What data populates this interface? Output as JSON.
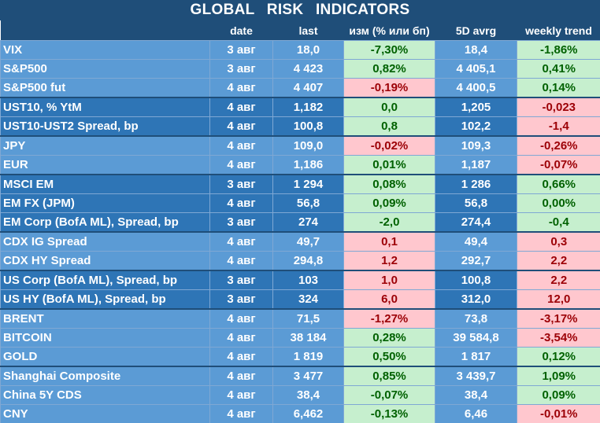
{
  "title": "GLOBAL RISK INDICATORS",
  "headers": [
    "",
    "date",
    "last",
    "изм (% или бп)",
    "5D avrg",
    "weekly trend"
  ],
  "rows": [
    {
      "name": "VIX",
      "date": "3 авг",
      "last": "18,0",
      "chg": "-7,30%",
      "chg_c": "pos",
      "avg": "18,4",
      "trend": "-1,86%",
      "trend_c": "pos",
      "grp": "A",
      "start": true
    },
    {
      "name": "S&P500",
      "date": "3 авг",
      "last": "4 423",
      "chg": "0,82%",
      "chg_c": "pos",
      "avg": "4 405,1",
      "trend": "0,41%",
      "trend_c": "pos",
      "grp": "A",
      "start": false
    },
    {
      "name": "S&P500 fut",
      "date": "4 авг",
      "last": "4 407",
      "chg": "-0,19%",
      "chg_c": "neg",
      "avg": "4 400,5",
      "trend": "0,14%",
      "trend_c": "pos",
      "grp": "A",
      "start": false
    },
    {
      "name": "UST10, % YtM",
      "date": "4 авг",
      "last": "1,182",
      "chg": "0,0",
      "chg_c": "pos",
      "avg": "1,205",
      "trend": "-0,023",
      "trend_c": "neg",
      "grp": "B",
      "start": true
    },
    {
      "name": "UST10-UST2 Spread, bp",
      "date": "4 авг",
      "last": "100,8",
      "chg": "0,8",
      "chg_c": "pos",
      "avg": "102,2",
      "trend": "-1,4",
      "trend_c": "neg",
      "grp": "B",
      "start": false
    },
    {
      "name": "JPY",
      "date": "4 авг",
      "last": "109,0",
      "chg": "-0,02%",
      "chg_c": "neg",
      "avg": "109,3",
      "trend": "-0,26%",
      "trend_c": "neg",
      "grp": "A",
      "start": true
    },
    {
      "name": "EUR",
      "date": "4 авг",
      "last": "1,186",
      "chg": "0,01%",
      "chg_c": "pos",
      "avg": "1,187",
      "trend": "-0,07%",
      "trend_c": "neg",
      "grp": "A",
      "start": false
    },
    {
      "name": "MSCI EM",
      "date": "3 авг",
      "last": "1 294",
      "chg": "0,08%",
      "chg_c": "pos",
      "avg": "1 286",
      "trend": "0,66%",
      "trend_c": "pos",
      "grp": "B",
      "start": true
    },
    {
      "name": "EM FX (JPM)",
      "date": "4 авг",
      "last": "56,8",
      "chg": "0,09%",
      "chg_c": "pos",
      "avg": "56,8",
      "trend": "0,00%",
      "trend_c": "pos",
      "grp": "B",
      "start": false
    },
    {
      "name": "EM Corp (BofA ML), Spread, bp",
      "date": "3 авг",
      "last": "274",
      "chg": "-2,0",
      "chg_c": "pos",
      "avg": "274,4",
      "trend": "-0,4",
      "trend_c": "pos",
      "grp": "B",
      "start": false
    },
    {
      "name": "CDX IG Spread",
      "date": "4 авг",
      "last": "49,7",
      "chg": "0,1",
      "chg_c": "neg",
      "avg": "49,4",
      "trend": "0,3",
      "trend_c": "neg",
      "grp": "A",
      "start": true
    },
    {
      "name": "CDX HY Spread",
      "date": "4 авг",
      "last": "294,8",
      "chg": "1,2",
      "chg_c": "neg",
      "avg": "292,7",
      "trend": "2,2",
      "trend_c": "neg",
      "grp": "A",
      "start": false
    },
    {
      "name": "US Corp (BofA ML), Spread, bp",
      "date": "3 авг",
      "last": "103",
      "chg": "1,0",
      "chg_c": "neg",
      "avg": "100,8",
      "trend": "2,2",
      "trend_c": "neg",
      "grp": "B",
      "start": true
    },
    {
      "name": "US HY (BofA ML), Spread, bp",
      "date": "3 авг",
      "last": "324",
      "chg": "6,0",
      "chg_c": "neg",
      "avg": "312,0",
      "trend": "12,0",
      "trend_c": "neg",
      "grp": "B",
      "start": false
    },
    {
      "name": "BRENT",
      "date": "4 авг",
      "last": "71,5",
      "chg": "-1,27%",
      "chg_c": "neg",
      "avg": "73,8",
      "trend": "-3,17%",
      "trend_c": "neg",
      "grp": "A",
      "start": true
    },
    {
      "name": "BITCOIN",
      "date": "4 авг",
      "last": "38 184",
      "chg": "0,28%",
      "chg_c": "pos",
      "avg": "39 584,8",
      "trend": "-3,54%",
      "trend_c": "neg",
      "grp": "A",
      "start": false
    },
    {
      "name": "GOLD",
      "date": "4 авг",
      "last": "1 819",
      "chg": "0,50%",
      "chg_c": "pos",
      "avg": "1 817",
      "trend": "0,12%",
      "trend_c": "pos",
      "grp": "A",
      "start": false
    },
    {
      "name": "Shanghai Composite",
      "date": "4 авг",
      "last": "3 477",
      "chg": "0,85%",
      "chg_c": "pos",
      "avg": "3 439,7",
      "trend": "1,09%",
      "trend_c": "pos",
      "grp": "A",
      "start": true
    },
    {
      "name": "China 5Y CDS",
      "date": "4 авг",
      "last": "38,4",
      "chg": "-0,07%",
      "chg_c": "pos",
      "avg": "38,4",
      "trend": "0,09%",
      "trend_c": "pos",
      "grp": "A",
      "start": false
    },
    {
      "name": "CNY",
      "date": "4 авг",
      "last": "6,462",
      "chg": "-0,13%",
      "chg_c": "pos",
      "avg": "6,46",
      "trend": "-0,01%",
      "trend_c": "neg",
      "grp": "A",
      "start": false
    }
  ],
  "colors": {
    "header": "#1f4e79",
    "group_a": "#5b9bd5",
    "group_b": "#2e75b6",
    "pos_bg": "#c6efce",
    "pos_fg": "#006100",
    "neg_bg": "#ffc7ce",
    "neg_fg": "#9c0006"
  }
}
